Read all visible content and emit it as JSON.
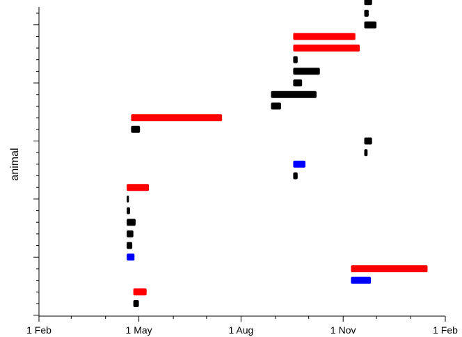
{
  "chart_data": {
    "type": "gantt",
    "title": "",
    "xlabel": "",
    "ylabel": "animal",
    "x_axis": {
      "type": "date",
      "range": [
        "2000-02-01",
        "2001-02-01"
      ],
      "major_ticks": [
        {
          "date": "2000-02-01",
          "label": "1 Feb"
        },
        {
          "date": "2000-05-01",
          "label": "1 May"
        },
        {
          "date": "2000-08-01",
          "label": "1 Aug"
        },
        {
          "date": "2000-11-01",
          "label": "1 Nov"
        },
        {
          "date": "2001-02-01",
          "label": "1 Feb"
        }
      ],
      "minor_ticks": [
        "2000-03-01",
        "2000-04-01",
        "2000-06-01",
        "2000-07-01",
        "2000-09-01",
        "2000-10-01",
        "2000-12-01",
        "2001-01-01"
      ]
    },
    "y_axis": {
      "range": [
        0,
        26
      ],
      "tick_labels": "none",
      "major_tick_every": 5
    },
    "grid": false,
    "legend": "none",
    "colors": {
      "black": "#000000",
      "red": "#ff0000",
      "blue": "#0000ff"
    },
    "segments": [
      {
        "animal": 1,
        "start": "2000-04-26",
        "end": "2000-05-01",
        "color": "black"
      },
      {
        "animal": 2,
        "start": "2000-04-26",
        "end": "2000-05-08",
        "color": "red"
      },
      {
        "animal": 3,
        "start": "2000-11-08",
        "end": "2000-11-26",
        "color": "blue"
      },
      {
        "animal": 4,
        "start": "2000-11-08",
        "end": "2001-01-16",
        "color": "red"
      },
      {
        "animal": 5,
        "start": "2000-04-20",
        "end": "2000-04-27",
        "color": "blue"
      },
      {
        "animal": 6,
        "start": "2000-04-20",
        "end": "2000-04-25",
        "color": "black"
      },
      {
        "animal": 7,
        "start": "2000-04-20",
        "end": "2000-04-26",
        "color": "black"
      },
      {
        "animal": 8,
        "start": "2000-04-20",
        "end": "2000-04-28",
        "color": "black"
      },
      {
        "animal": 9,
        "start": "2000-04-20",
        "end": "2000-04-23",
        "color": "black"
      },
      {
        "animal": 10,
        "start": "2000-04-20",
        "end": "2000-04-22",
        "color": "black"
      },
      {
        "animal": 11,
        "start": "2000-04-20",
        "end": "2000-05-10",
        "color": "red"
      },
      {
        "animal": 12,
        "start": "2000-09-17",
        "end": "2000-09-21",
        "color": "black"
      },
      {
        "animal": 13,
        "start": "2000-09-17",
        "end": "2000-09-28",
        "color": "blue"
      },
      {
        "animal": 14,
        "start": "2000-11-20",
        "end": "2000-11-23",
        "color": "black"
      },
      {
        "animal": 15,
        "start": "2000-11-20",
        "end": "2000-11-27",
        "color": "black"
      },
      {
        "animal": 16,
        "start": "2000-04-24",
        "end": "2000-05-02",
        "color": "black"
      },
      {
        "animal": 17,
        "start": "2000-04-24",
        "end": "2000-07-15",
        "color": "red"
      },
      {
        "animal": 18,
        "start": "2000-08-28",
        "end": "2000-09-06",
        "color": "black"
      },
      {
        "animal": 19,
        "start": "2000-08-28",
        "end": "2000-10-08",
        "color": "black"
      },
      {
        "animal": 20,
        "start": "2000-09-17",
        "end": "2000-09-25",
        "color": "black"
      },
      {
        "animal": 21,
        "start": "2000-09-17",
        "end": "2000-10-11",
        "color": "black"
      },
      {
        "animal": 22,
        "start": "2000-09-17",
        "end": "2000-09-21",
        "color": "black"
      },
      {
        "animal": 23,
        "start": "2000-09-17",
        "end": "2000-11-16",
        "color": "red"
      },
      {
        "animal": 24,
        "start": "2000-09-17",
        "end": "2000-11-12",
        "color": "red"
      },
      {
        "animal": 25,
        "start": "2000-11-20",
        "end": "2000-12-01",
        "color": "black"
      },
      {
        "animal": 26,
        "start": "2000-11-20",
        "end": "2000-11-24",
        "color": "black"
      },
      {
        "animal": 27,
        "start": "2000-11-20",
        "end": "2000-11-27",
        "color": "black"
      }
    ]
  }
}
